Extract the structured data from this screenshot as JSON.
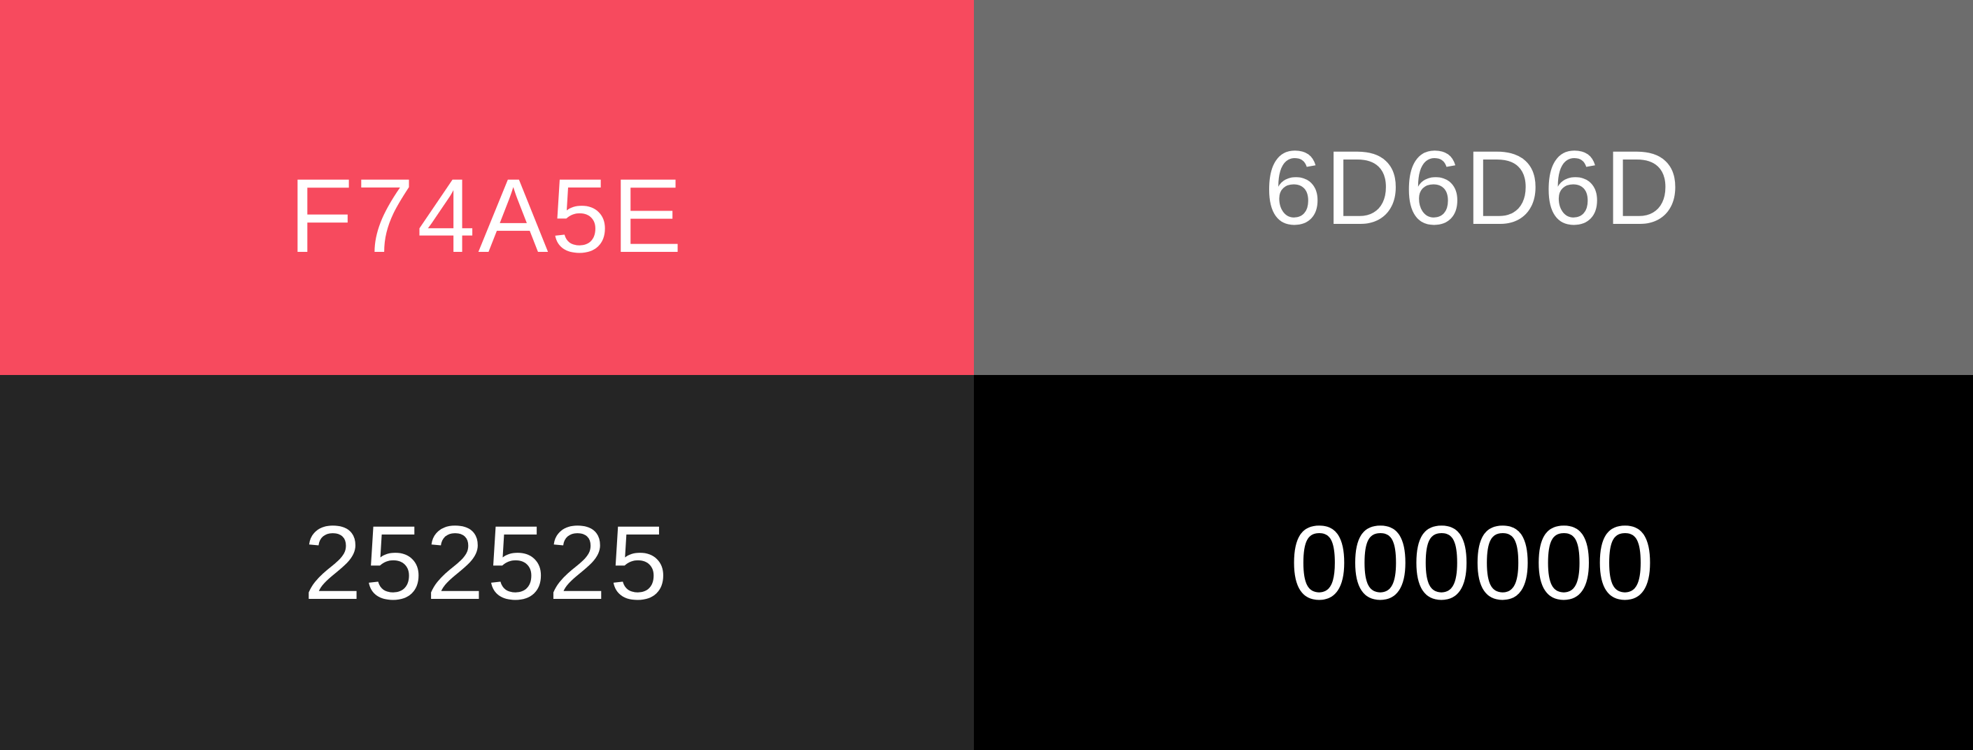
{
  "swatches": [
    {
      "label": "F74A5E",
      "color": "#F74A5E"
    },
    {
      "label": "6D6D6D",
      "color": "#6D6D6D"
    },
    {
      "label": "252525",
      "color": "#252525"
    },
    {
      "label": "000000",
      "color": "#000000"
    }
  ],
  "text_color": "#FFFFFF"
}
